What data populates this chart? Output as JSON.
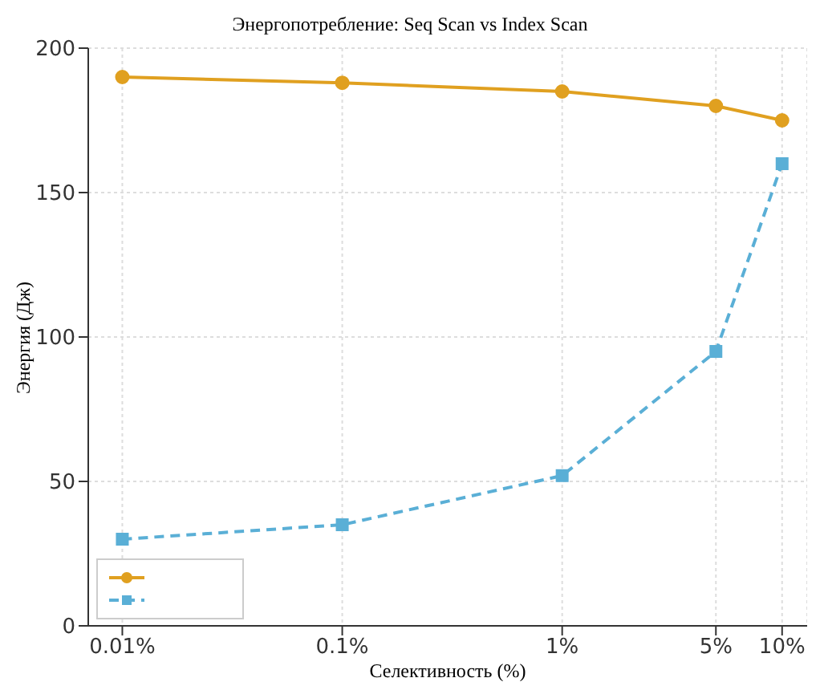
{
  "chart_data": {
    "type": "line",
    "title": "Энергопотребление: Seq Scan vs Index Scan",
    "xlabel": "Селективность (%)",
    "ylabel": "Энергия (Дж)",
    "x": [
      0.01,
      0.1,
      1,
      5,
      10
    ],
    "series": [
      {
        "color": "#e0a020",
        "values": [
          190,
          188,
          185,
          180,
          175
        ],
        "marker": "circle",
        "line_style": "solid"
      },
      {
        "color": "#5aafd6",
        "values": [
          30,
          35,
          52,
          95,
          160
        ],
        "marker": "square",
        "line_style": "dashed"
      }
    ],
    "log": "x",
    "xlim": [
      0.007,
      13
    ],
    "xticks": [
      {
        "value": 0.01,
        "label": "0.01%"
      },
      {
        "value": 0.1,
        "label": "0.1%"
      },
      {
        "value": 1,
        "label": "1%"
      },
      {
        "value": 5,
        "label": "5%"
      },
      {
        "value": 10,
        "label": "10%"
      }
    ],
    "ylim": [
      0,
      200
    ],
    "yticks": [
      0,
      50,
      100,
      150,
      200
    ],
    "grid": true
  }
}
